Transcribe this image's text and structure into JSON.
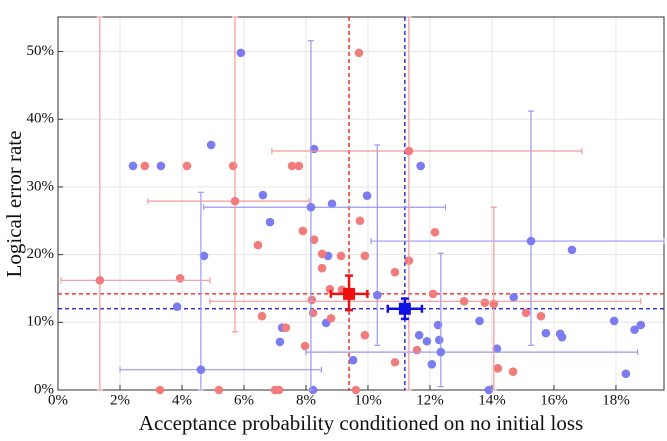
{
  "chart_data": {
    "type": "scatter",
    "xlabel": "Acceptance probability conditioned on no initial loss",
    "ylabel": "Logical error rate",
    "xlim": [
      0,
      19.55
    ],
    "ylim": [
      0,
      55.1
    ],
    "xticks": [
      {
        "value": 0,
        "label": "0%"
      },
      {
        "value": 2,
        "label": "2%"
      },
      {
        "value": 4,
        "label": "4%"
      },
      {
        "value": 6,
        "label": "6%"
      },
      {
        "value": 8,
        "label": "8%"
      },
      {
        "value": 10,
        "label": "10%"
      },
      {
        "value": 12,
        "label": "12%"
      },
      {
        "value": 14,
        "label": "14%"
      },
      {
        "value": 16,
        "label": "16%"
      },
      {
        "value": 18,
        "label": "18%"
      }
    ],
    "yticks": [
      {
        "value": 0,
        "label": "0%"
      },
      {
        "value": 10,
        "label": "10%"
      },
      {
        "value": 20,
        "label": "20%"
      },
      {
        "value": 30,
        "label": "30%"
      },
      {
        "value": 40,
        "label": "40%"
      },
      {
        "value": 50,
        "label": "50%"
      }
    ],
    "grid": true,
    "series": [
      {
        "color": "#7b7bf2",
        "marker": "circle",
        "x": [
          2.42,
          3.32,
          4.94,
          5.9,
          6.61,
          6.84,
          4.71,
          3.84,
          8.84,
          8.71,
          8.65,
          7.23,
          7.16,
          8.23,
          9.52,
          9.97,
          11.7,
          11.65,
          11.9,
          12.26,
          12.3,
          12.06,
          13.6,
          14.16,
          13.9,
          14.7,
          15.74,
          16.58,
          16.2,
          16.26,
          17.94,
          18.32,
          18.6,
          18.8,
          8.26
        ],
        "values": [
          33.1,
          33.1,
          36.2,
          49.8,
          28.8,
          24.8,
          19.8,
          12.3,
          27.5,
          19.8,
          9.9,
          9.2,
          7.1,
          0,
          4.4,
          28.7,
          33.1,
          8.1,
          7.2,
          9.6,
          7.4,
          3.8,
          10.2,
          6.1,
          0,
          13.7,
          8.4,
          20.7,
          8.3,
          7.8,
          10.2,
          2.4,
          8.9,
          9.6,
          35.6
        ]
      },
      {
        "color": "#f27b7b",
        "marker": "circle",
        "x": [
          2.8,
          4.16,
          5.65,
          7.55,
          7.77,
          9.71,
          3.94,
          6.45,
          6.58,
          7.35,
          7.97,
          7.9,
          8.26,
          8.52,
          8.52,
          8.19,
          8.23,
          8.81,
          8.77,
          9.16,
          9.13,
          9.74,
          9.9,
          9.9,
          9.61,
          10.87,
          10.87,
          11.32,
          12.16,
          12.1,
          11.58,
          13.77,
          14.19,
          14.68,
          15.1,
          15.58,
          3.29,
          5.19,
          7.0,
          7.13
        ],
        "values": [
          33.1,
          33.1,
          33.1,
          33.1,
          33.1,
          49.8,
          16.5,
          21.4,
          10.9,
          9.2,
          6.5,
          23.5,
          22.2,
          20.1,
          18.0,
          13.3,
          11.4,
          10.6,
          14.9,
          14.8,
          19.8,
          25.0,
          19.8,
          8.1,
          0,
          17.4,
          4.1,
          19.1,
          23.3,
          14.2,
          5.9,
          12.9,
          3.2,
          2.7,
          11.4,
          10.9,
          0,
          0,
          0,
          0
        ]
      },
      {
        "color": "#7b7bf2",
        "marker": "circle",
        "errorbar_color": "#9a9af0",
        "x": [
          4.61,
          8.16,
          12.35,
          10.3,
          15.26
        ],
        "values": [
          3.0,
          27.0,
          5.6,
          14.0,
          22.0
        ],
        "xerr": [
          [
            2.0,
            8.5
          ],
          [
            4.7,
            12.5
          ],
          [
            8.0,
            18.7
          ],
          null,
          [
            10.1,
            19.55
          ]
        ],
        "yerr": [
          [
            0,
            29.2
          ],
          [
            0,
            51.6
          ],
          [
            0.5,
            20.2
          ],
          [
            6.6,
            36.2
          ],
          [
            6.6,
            41.2
          ]
        ]
      },
      {
        "color": "#f27b7b",
        "marker": "circle",
        "errorbar_color": "#f09a9a",
        "x": [
          1.35,
          5.71,
          11.32,
          14.06,
          13.1
        ],
        "values": [
          16.2,
          27.9,
          35.3,
          12.7,
          13.1
        ],
        "xerr": [
          [
            0.1,
            4.9
          ],
          [
            2.9,
            8.1
          ],
          [
            6.9,
            16.9
          ],
          null,
          [
            4.9,
            18.8
          ]
        ],
        "yerr": [
          [
            0,
            55.1
          ],
          [
            8.6,
            55.1
          ],
          [
            0,
            55.1
          ],
          [
            0,
            27.0
          ],
          null
        ]
      },
      {
        "color": "#1010e0",
        "marker": "square",
        "errorbar_color": "#1010e0",
        "mean_lines": true,
        "line_style": "dashed",
        "x": [
          11.19
        ],
        "values": [
          12.0
        ],
        "xerr": [
          [
            10.64,
            11.74
          ]
        ],
        "yerr": [
          [
            10.5,
            13.5
          ]
        ]
      },
      {
        "color": "#ee1010",
        "marker": "square",
        "errorbar_color": "#ee1010",
        "mean_lines": true,
        "line_style": "dashed",
        "x": [
          9.39
        ],
        "values": [
          14.2
        ],
        "xerr": [
          [
            8.8,
            9.98
          ]
        ],
        "yerr": [
          [
            11.8,
            16.9
          ]
        ]
      }
    ]
  }
}
